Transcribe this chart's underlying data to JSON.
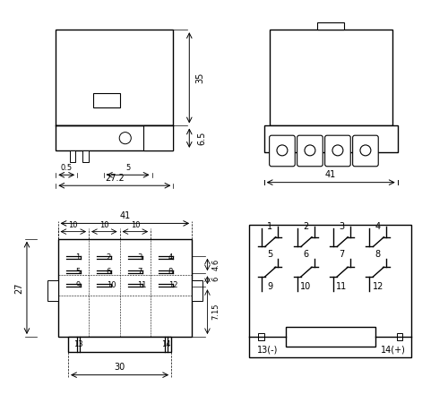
{
  "bg_color": "#ffffff",
  "line_color": "#000000",
  "line_width": 1.0,
  "thin_line": 0.5,
  "font_size": 7,
  "title_font_size": 8
}
